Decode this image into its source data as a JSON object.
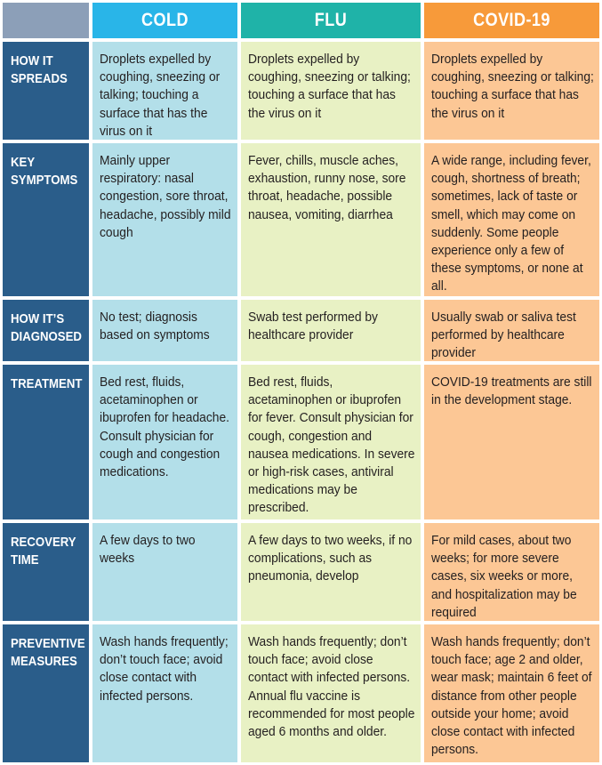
{
  "headers": {
    "cold": "COLD",
    "flu": "FLU",
    "covid": "COVID-19"
  },
  "colors": {
    "corner": "#8c9fb8",
    "cold_header": "#29b5e8",
    "flu_header": "#1fb3a8",
    "covid_header": "#f79a3a",
    "row_label_bg": "#2a5d8a",
    "cold_cell": "#b3dfe9",
    "flu_cell": "#e8f1c4",
    "covid_cell": "#fcc795"
  },
  "rows": [
    {
      "label": "HOW IT\nSPREADS",
      "cold": "Droplets expelled by coughing, sneezing or talking; touching a surface that has the virus on it",
      "flu": "Droplets expelled by coughing, sneezing or talking; touching a surface that has the virus on it",
      "covid": "Droplets expelled by coughing, sneezing or talking; touching a surface that has the virus on it"
    },
    {
      "label": "KEY\nSYMPTOMS",
      "cold": "Mainly upper respiratory: nasal congestion, sore throat, headache, possibly mild cough",
      "flu": "Fever, chills, muscle aches, exhaustion, runny nose, sore throat, headache, possible nausea, vomiting, diarrhea",
      "covid": "A wide range, including fever, cough, shortness of breath; sometimes, lack of taste or smell, which may come on suddenly. Some people experience only a few of these symptoms, or none at all."
    },
    {
      "label": "HOW IT’S\nDIAGNOSED",
      "cold": "No test; diagnosis based on symptoms",
      "flu": "Swab test performed by healthcare provider",
      "covid": "Usually swab or saliva test performed by healthcare provider"
    },
    {
      "label": "TREATMENT",
      "cold": "Bed rest, fluids, acetaminophen or ibuprofen for headache. Consult physician for cough and congestion medications.",
      "flu": "Bed rest, fluids, acetaminophen or ibuprofen for fever. Consult physician for cough, congestion and nausea medications. In severe or high-risk cases, antiviral medications may be prescribed.",
      "covid": "COVID-19 treatments are still in the development stage."
    },
    {
      "label": "RECOVERY\nTIME",
      "cold": "A few days to two weeks",
      "flu": "A few days to two weeks, if no complications, such as pneumonia, develop",
      "covid": "For mild cases, about two weeks; for more severe cases, six weeks or more, and hospitalization may be required"
    },
    {
      "label": "PREVENTIVE\nMEASURES",
      "cold": "Wash hands frequently; don’t touch face; avoid close contact with infected persons.",
      "flu": "Wash hands frequently; don’t touch face; avoid close contact with infected persons. Annual flu vaccine is recommended for most people aged 6 months and older.",
      "covid": "Wash hands frequently; don’t touch face; age 2 and older, wear mask; maintain 6 feet of distance from other people outside your home; avoid close contact with infected persons."
    }
  ]
}
